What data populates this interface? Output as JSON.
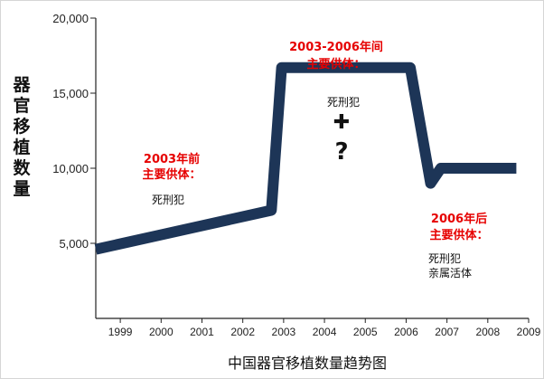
{
  "chart_data": {
    "type": "line",
    "title": "中国器官移植数量趋势图",
    "ylabel": "器官移植数量",
    "xlabel": "",
    "x_ticks": [
      "1999",
      "2000",
      "2001",
      "2002",
      "2003",
      "2004",
      "2005",
      "2006",
      "2007",
      "2008",
      "2009"
    ],
    "y_ticks": [
      "5,000",
      "10,000",
      "15,000",
      "20,000"
    ],
    "y_tick_values": [
      5000,
      10000,
      15000,
      20000
    ],
    "xlim": [
      1998.4,
      2009
    ],
    "ylim": [
      0,
      20000
    ],
    "grid": false,
    "line_color": "#1d3557",
    "series": [
      {
        "x": [
          1998.4,
          2002.7,
          2002.95,
          2006.1,
          2006.6,
          2006.85,
          2008.7
        ],
        "y": [
          4600,
          7200,
          16700,
          16700,
          9000,
          10000,
          10000
        ]
      }
    ],
    "annotations": {
      "pre2003": {
        "lines": [
          "2003年前",
          "主要供体："
        ],
        "source": [
          "死刑犯"
        ]
      },
      "mid": {
        "lines": [
          "2003-2006年间",
          "主要供体："
        ],
        "source": [
          "死刑犯"
        ],
        "plus": "✚",
        "question": "?"
      },
      "post2006": {
        "lines": [
          "2006年后",
          "主要供体："
        ],
        "source": [
          "死刑犯",
          "亲属活体"
        ]
      }
    }
  }
}
